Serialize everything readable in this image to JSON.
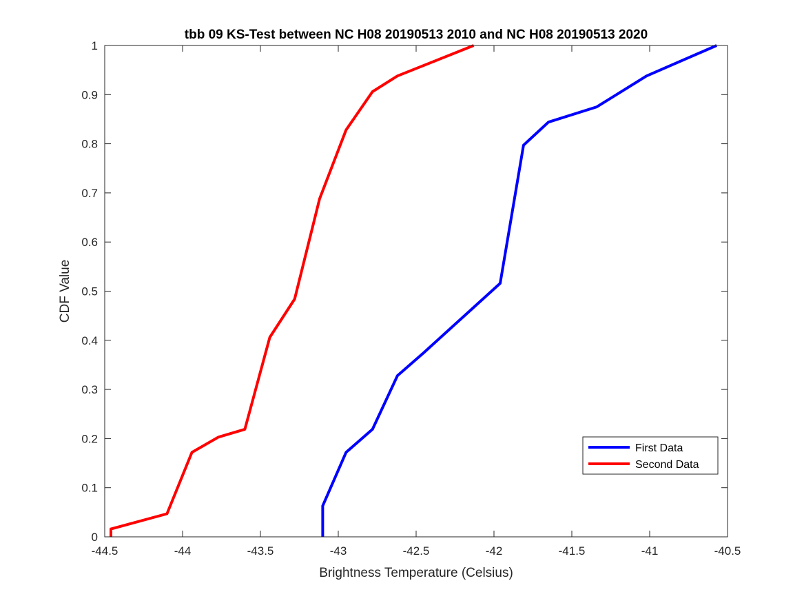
{
  "chart_data": {
    "type": "line",
    "title": "tbb 09 KS-Test between NC H08 20190513 2010 and NC H08 20190513 2020",
    "xlabel": "Brightness Temperature (Celsius)",
    "ylabel": "CDF Value",
    "xlim": [
      -44.5,
      -40.5
    ],
    "ylim": [
      0,
      1
    ],
    "xticks": [
      -44.5,
      -44,
      -43.5,
      -43,
      -42.5,
      -42,
      -41.5,
      -41,
      -40.5
    ],
    "xtick_labels": [
      "-44.5",
      "-44",
      "-43.5",
      "-43",
      "-42.5",
      "-42",
      "-41.5",
      "-41",
      "-40.5"
    ],
    "yticks": [
      0,
      0.1,
      0.2,
      0.3,
      0.4,
      0.5,
      0.6,
      0.7,
      0.8,
      0.9,
      1
    ],
    "ytick_labels": [
      "0",
      "0.1",
      "0.2",
      "0.3",
      "0.4",
      "0.5",
      "0.6",
      "0.7",
      "0.8",
      "0.9",
      "1"
    ],
    "grid": false,
    "legend_position": "bottom-right",
    "series": [
      {
        "name": "First Data",
        "color": "#0000ff",
        "x": [
          -43.1,
          -43.1,
          -42.95,
          -42.78,
          -42.62,
          -42.45,
          -41.96,
          -41.81,
          -41.65,
          -41.34,
          -41.02,
          -40.57
        ],
        "y": [
          0,
          0.063,
          0.172,
          0.219,
          0.328,
          0.375,
          0.516,
          0.797,
          0.844,
          0.875,
          0.938,
          1.0
        ]
      },
      {
        "name": "Second Data",
        "color": "#ff0000",
        "x": [
          -44.46,
          -44.46,
          -44.1,
          -43.94,
          -43.77,
          -43.6,
          -43.44,
          -43.28,
          -43.12,
          -42.95,
          -42.78,
          -42.62,
          -42.13
        ],
        "y": [
          0,
          0.016,
          0.047,
          0.172,
          0.203,
          0.219,
          0.406,
          0.484,
          0.688,
          0.828,
          0.906,
          0.938,
          1.0
        ]
      }
    ]
  }
}
